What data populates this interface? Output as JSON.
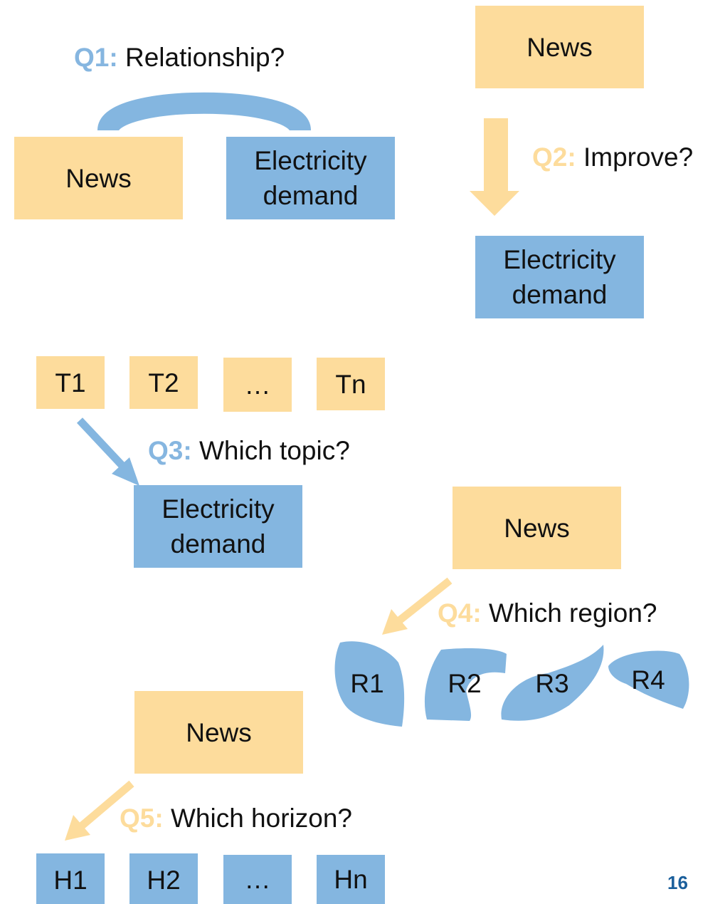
{
  "q1": {
    "label": "Q1:",
    "question": "Relationship?",
    "nodes": [
      "News",
      "Electricity demand"
    ]
  },
  "q2": {
    "label": "Q2:",
    "question": "Improve?",
    "nodes": [
      "News",
      "Electricity demand"
    ]
  },
  "q3": {
    "label": "Q3:",
    "question": "Which topic?",
    "topics": [
      "T1",
      "T2",
      "…",
      "Tn"
    ],
    "target": "Electricity demand"
  },
  "q4": {
    "label": "Q4:",
    "question": "Which region?",
    "source": "News",
    "regions": [
      "R1",
      "R2",
      "R3",
      "R4"
    ]
  },
  "q5": {
    "label": "Q5:",
    "question": "Which horizon?",
    "source": "News",
    "horizons": [
      "H1",
      "H2",
      "…",
      "Hn"
    ]
  },
  "page_number": "16"
}
